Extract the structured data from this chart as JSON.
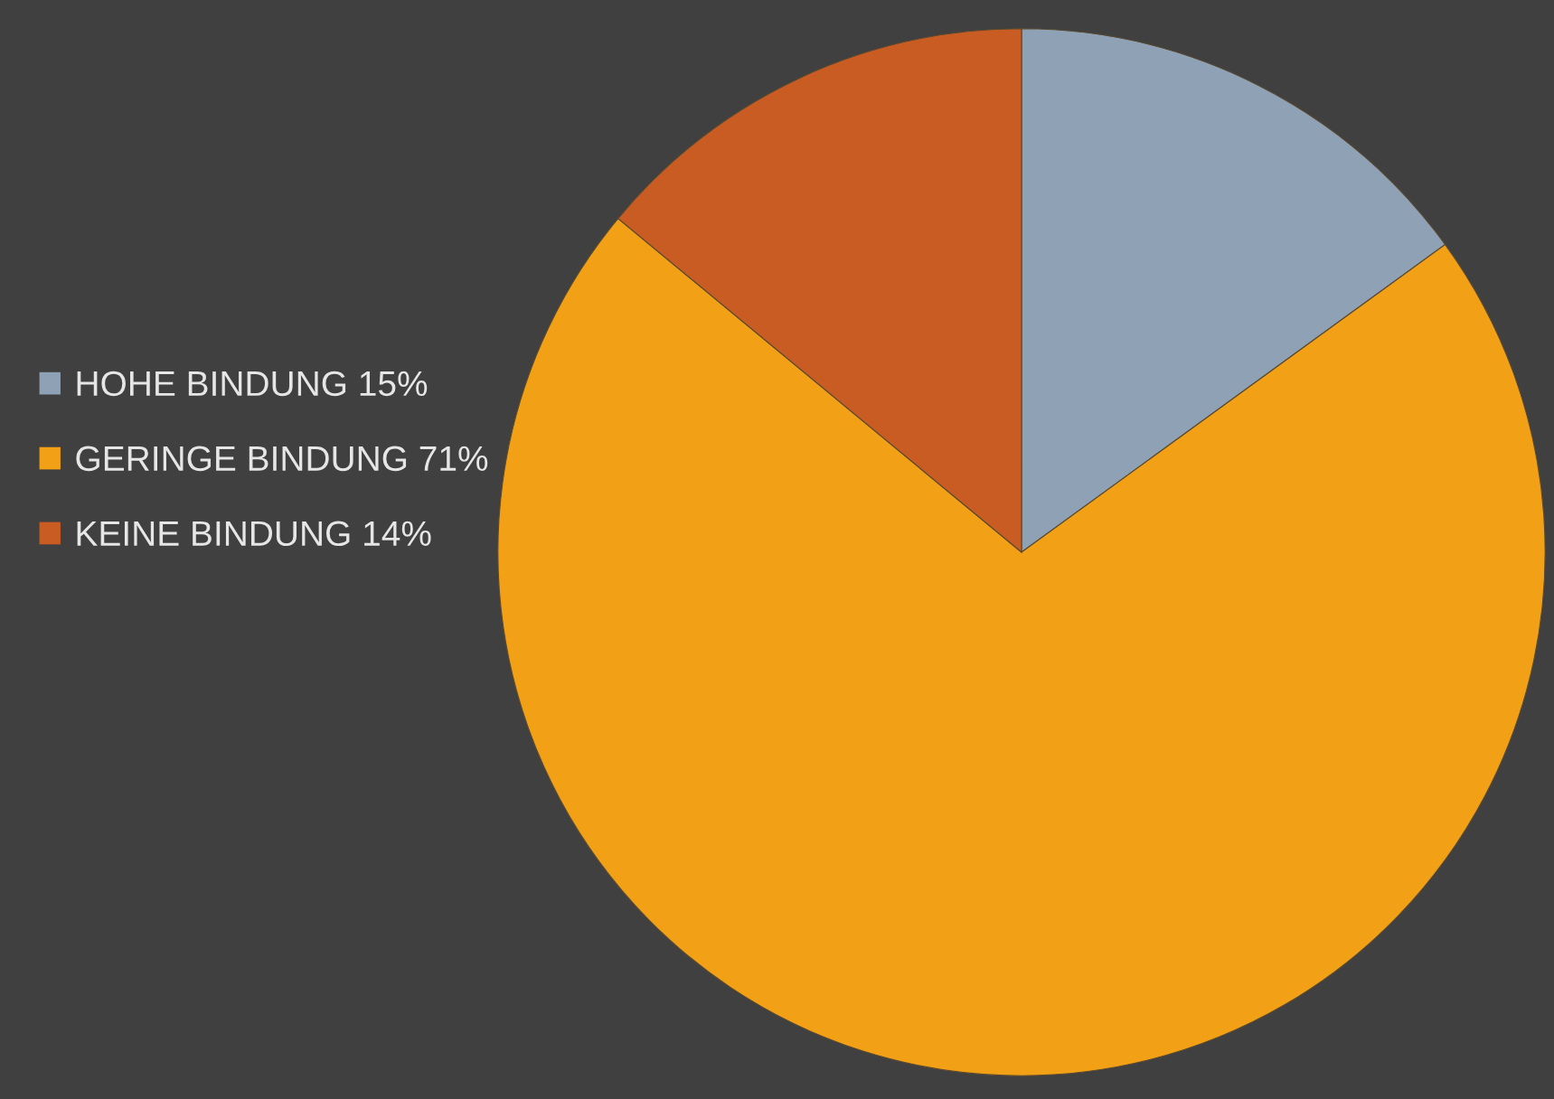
{
  "chart_data": {
    "type": "pie",
    "categories": [
      "HOHE BINDUNG 15%",
      "GERINGE BINDUNG 71%",
      "KEINE BINDUNG 14%"
    ],
    "values": [
      15,
      71,
      14
    ],
    "colors": [
      "#8fa1b5",
      "#f2a016",
      "#c95c22"
    ],
    "legend": "left"
  }
}
